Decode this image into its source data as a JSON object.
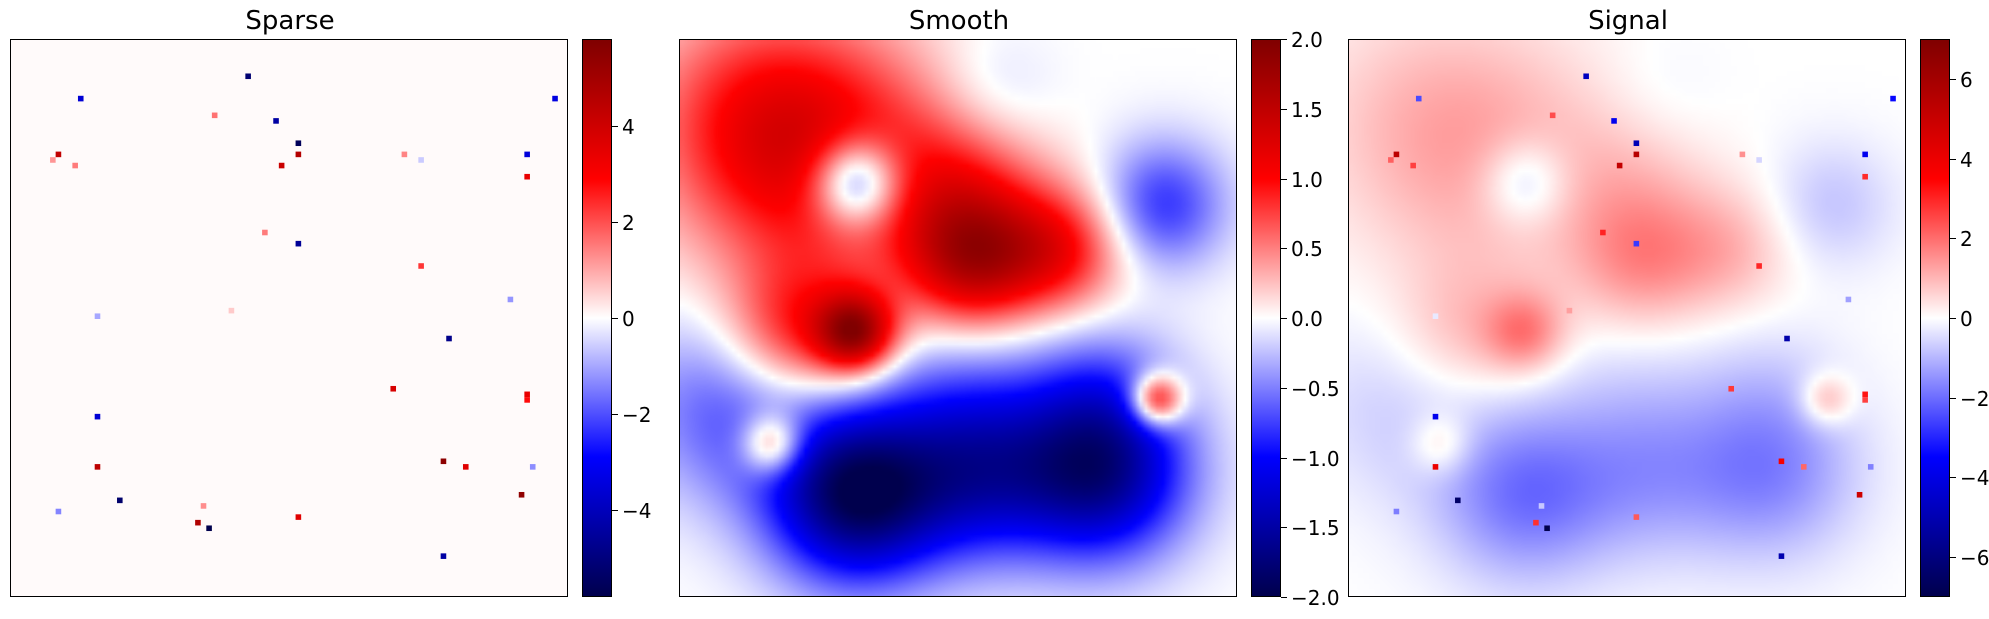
{
  "chart_data": [
    {
      "type": "heatmap",
      "title": "Sparse",
      "colormap": "seismic",
      "axes_visible": false,
      "colorbar": {
        "vmin": -5.8,
        "vmax": 5.8,
        "ticks": [
          "−4",
          "−2",
          "0",
          "2",
          "4"
        ],
        "tick_values": [
          -4,
          -2,
          0,
          2,
          4
        ]
      },
      "smooth_field": [],
      "spikes": [
        {
          "x": 42,
          "y": 6,
          "v": -5.2
        },
        {
          "x": 12,
          "y": 10,
          "v": -3.6
        },
        {
          "x": 47,
          "y": 14,
          "v": -4.4
        },
        {
          "x": 51,
          "y": 18,
          "v": -5.6
        },
        {
          "x": 8,
          "y": 20,
          "v": 4.3
        },
        {
          "x": 7,
          "y": 21,
          "v": 1.2
        },
        {
          "x": 11,
          "y": 22,
          "v": 1.5
        },
        {
          "x": 36,
          "y": 13,
          "v": 1.6
        },
        {
          "x": 51,
          "y": 20,
          "v": 4.6
        },
        {
          "x": 48,
          "y": 22,
          "v": 4.1
        },
        {
          "x": 70,
          "y": 20,
          "v": 1.4
        },
        {
          "x": 73,
          "y": 21,
          "v": -0.6
        },
        {
          "x": 92,
          "y": 20,
          "v": -3.5
        },
        {
          "x": 97,
          "y": 10,
          "v": -3.4
        },
        {
          "x": 92,
          "y": 24,
          "v": 3.4
        },
        {
          "x": 45,
          "y": 34,
          "v": 1.5
        },
        {
          "x": 51,
          "y": 36,
          "v": -4.6
        },
        {
          "x": 73,
          "y": 40,
          "v": 2.3
        },
        {
          "x": 15,
          "y": 49,
          "v": -1.0
        },
        {
          "x": 39,
          "y": 48,
          "v": 0.6
        },
        {
          "x": 89,
          "y": 46,
          "v": -1.2
        },
        {
          "x": 78,
          "y": 53,
          "v": -4.8
        },
        {
          "x": 68,
          "y": 62,
          "v": 3.8
        },
        {
          "x": 92,
          "y": 63,
          "v": 3.4
        },
        {
          "x": 92,
          "y": 64,
          "v": 2.8
        },
        {
          "x": 15,
          "y": 67,
          "v": -3.6
        },
        {
          "x": 15,
          "y": 76,
          "v": 4.4
        },
        {
          "x": 77,
          "y": 75,
          "v": 5.5
        },
        {
          "x": 81,
          "y": 76,
          "v": 3.6
        },
        {
          "x": 93,
          "y": 76,
          "v": -1.3
        },
        {
          "x": 19,
          "y": 82,
          "v": -5.3
        },
        {
          "x": 91,
          "y": 81,
          "v": 5.4
        },
        {
          "x": 8,
          "y": 84,
          "v": -1.4
        },
        {
          "x": 34,
          "y": 83,
          "v": 1.3
        },
        {
          "x": 33,
          "y": 86,
          "v": 4.7
        },
        {
          "x": 35,
          "y": 87,
          "v": -5.8
        },
        {
          "x": 51,
          "y": 85,
          "v": 3.6
        },
        {
          "x": 77,
          "y": 92,
          "v": -4.4
        }
      ]
    },
    {
      "type": "heatmap",
      "title": "Smooth",
      "colormap": "seismic",
      "axes_visible": false,
      "colorbar": {
        "vmin": -2.0,
        "vmax": 2.0,
        "ticks": [
          "−2.0",
          "−1.5",
          "−1.0",
          "−0.5",
          "0.0",
          "0.5",
          "1.0",
          "1.5",
          "2.0"
        ],
        "tick_values": [
          -2.0,
          -1.5,
          -1.0,
          -0.5,
          0.0,
          0.5,
          1.0,
          1.5,
          2.0
        ]
      },
      "smooth_field": [
        {
          "x": 24,
          "y": 20,
          "a": 1.1,
          "s": 16
        },
        {
          "x": 10,
          "y": 12,
          "a": 0.45,
          "s": 14
        },
        {
          "x": 31,
          "y": 25,
          "a": -1.3,
          "s": 5.5
        },
        {
          "x": 52,
          "y": 39,
          "a": 1.5,
          "s": 9
        },
        {
          "x": 68,
          "y": 37,
          "a": 0.9,
          "s": 8
        },
        {
          "x": 50,
          "y": 24,
          "a": 0.55,
          "s": 10
        },
        {
          "x": 86,
          "y": 29,
          "a": -0.8,
          "s": 8
        },
        {
          "x": 55,
          "y": 10,
          "a": -0.25,
          "s": 8
        },
        {
          "x": 31,
          "y": 52,
          "a": 1.6,
          "s": 5
        },
        {
          "x": 20,
          "y": 52,
          "a": 0.9,
          "s": 9
        },
        {
          "x": 8,
          "y": 65,
          "a": -0.65,
          "s": 12
        },
        {
          "x": 31,
          "y": 81,
          "a": -1.9,
          "s": 11
        },
        {
          "x": 53,
          "y": 77,
          "a": -1.1,
          "s": 11
        },
        {
          "x": 75,
          "y": 77,
          "a": -1.6,
          "s": 11
        },
        {
          "x": 85,
          "y": 64,
          "a": 1.4,
          "s": 3.2
        },
        {
          "x": 16,
          "y": 72,
          "a": 1.0,
          "s": 3.8
        },
        {
          "x": 50,
          "y": 60,
          "a": -0.35,
          "s": 12
        },
        {
          "x": 75,
          "y": 62,
          "a": -0.4,
          "s": 9
        }
      ],
      "spikes": []
    },
    {
      "type": "heatmap",
      "title": "Signal",
      "colormap": "seismic",
      "axes_visible": false,
      "colorbar": {
        "vmin": -7.0,
        "vmax": 7.0,
        "ticks": [
          "−6",
          "−4",
          "−2",
          "0",
          "2",
          "4",
          "6"
        ],
        "tick_values": [
          -6,
          -4,
          -2,
          0,
          2,
          4,
          6
        ]
      },
      "combine": "smooth_plus_sparse",
      "smooth_field": [],
      "spikes": []
    }
  ]
}
